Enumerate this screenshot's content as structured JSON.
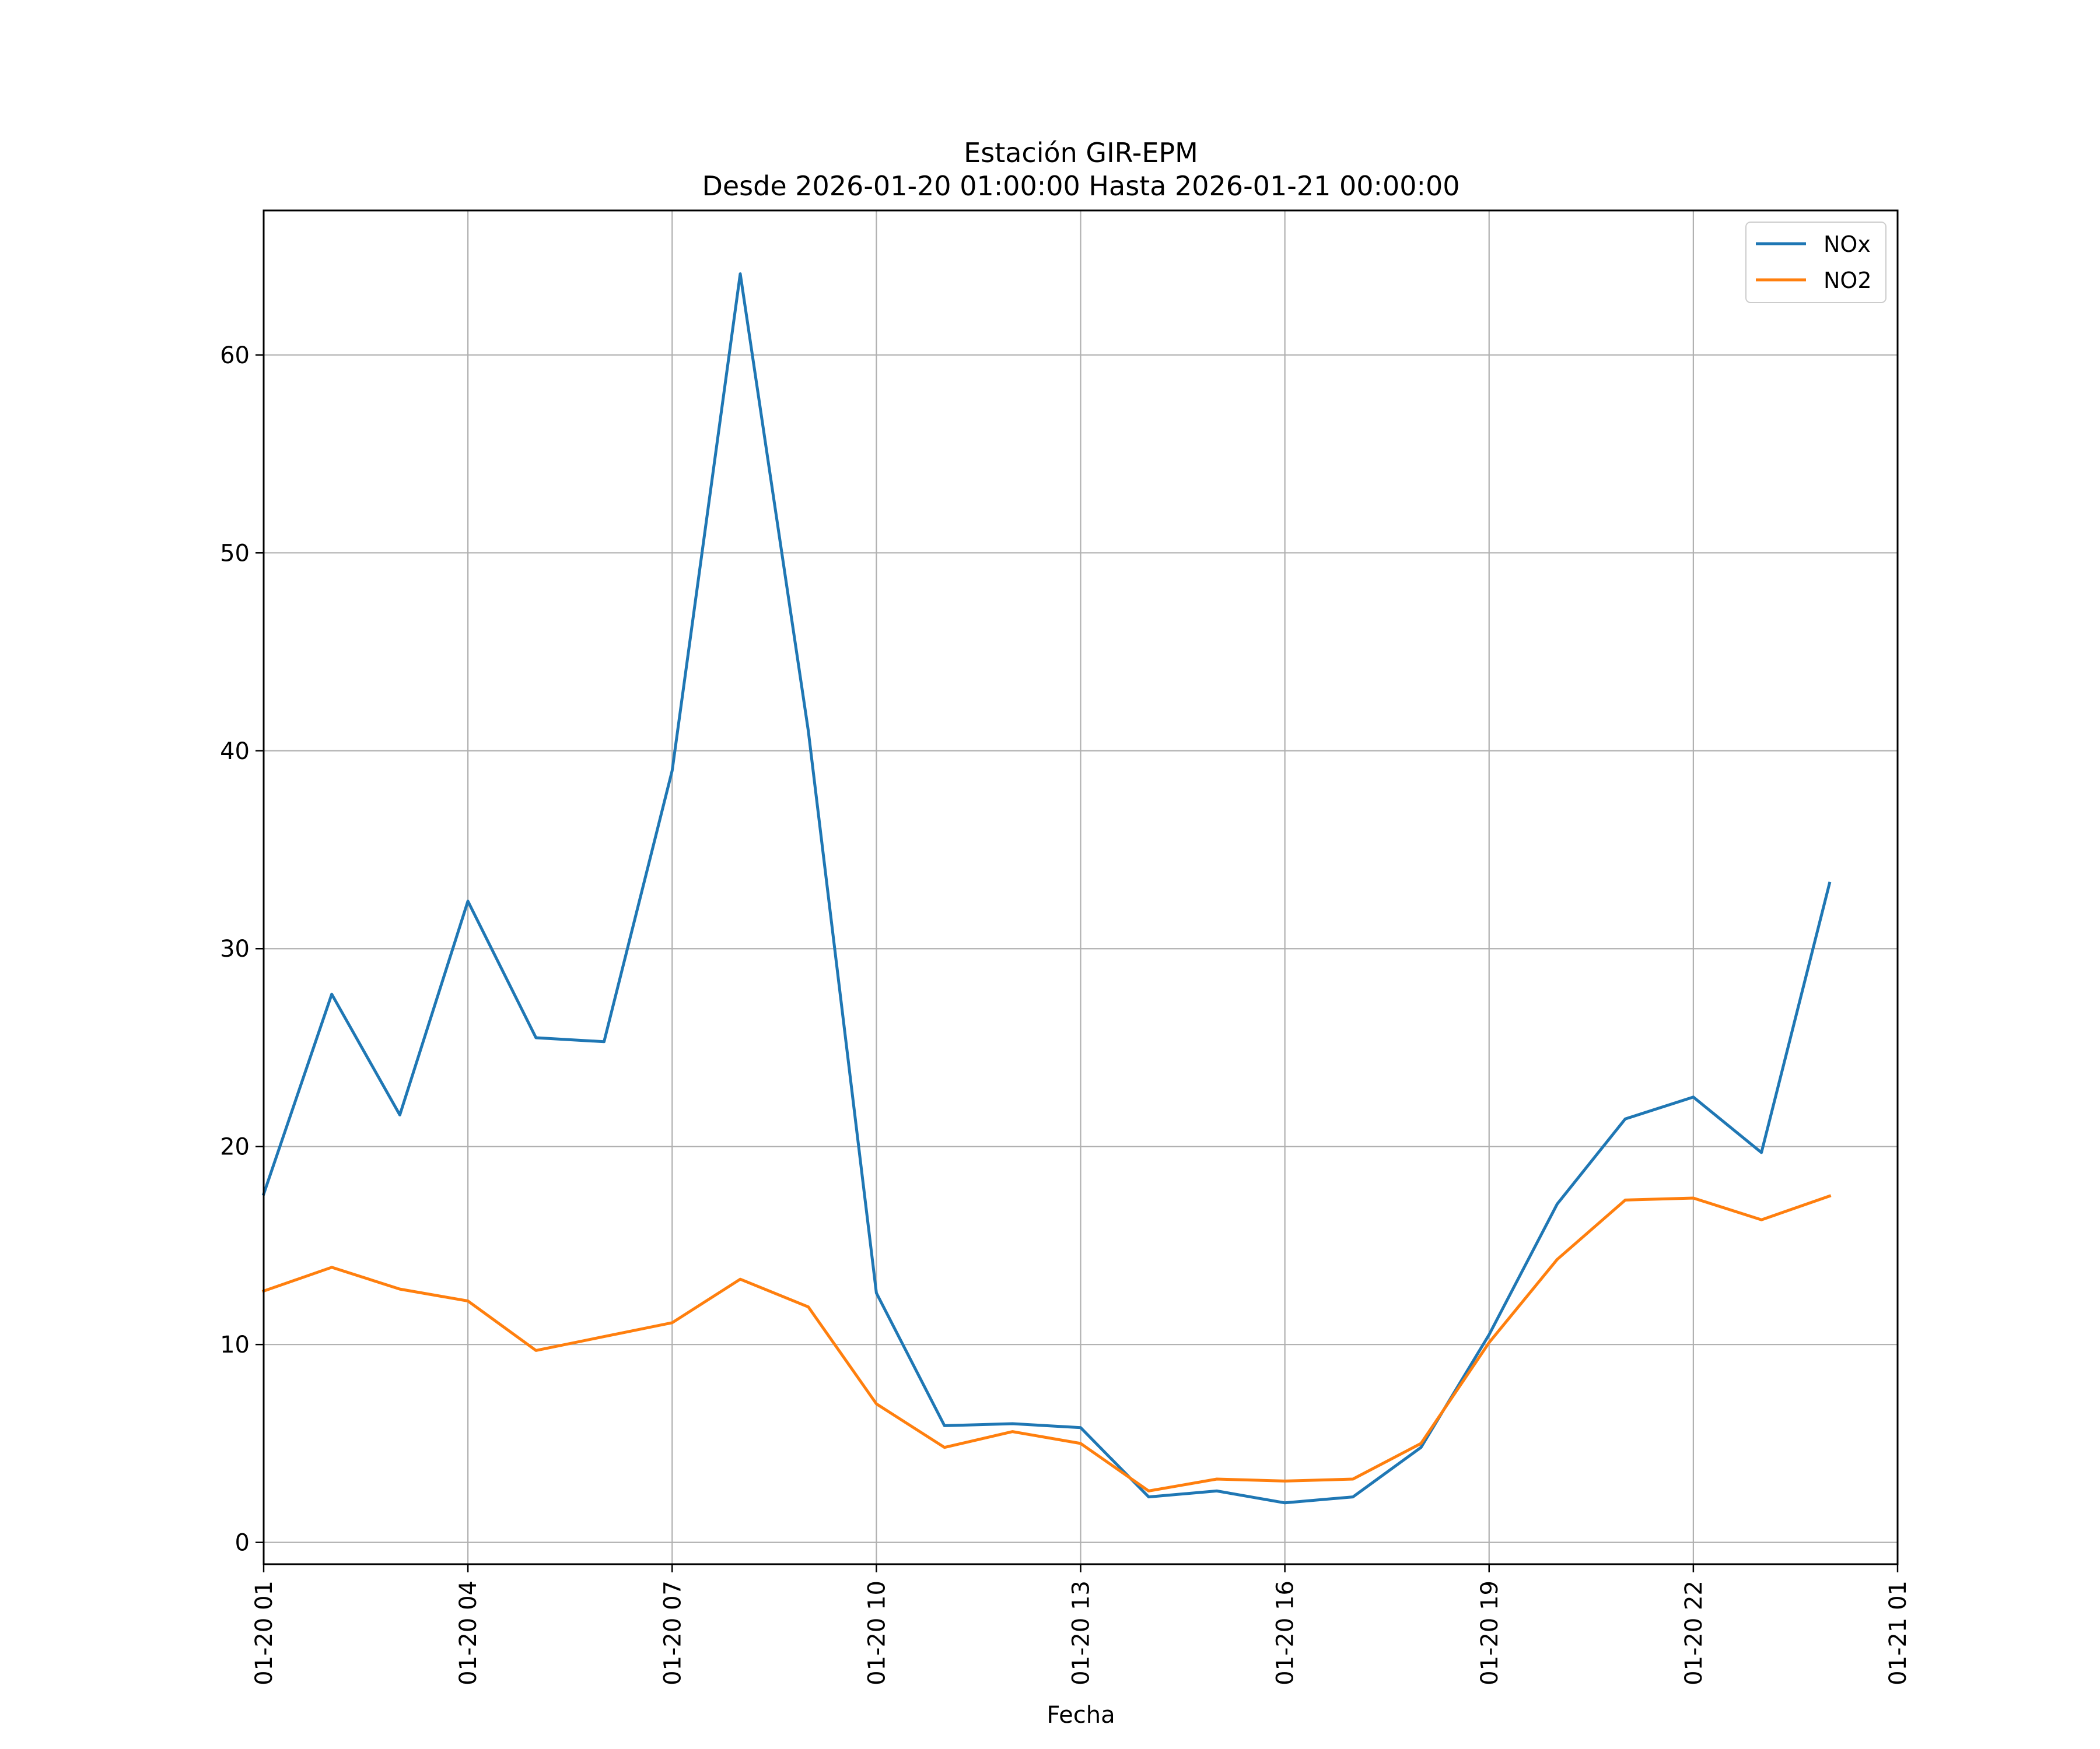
{
  "chart_data": {
    "type": "line",
    "title": "Estación GIR-EPM",
    "subtitle": "Desde 2026-01-20 01:00:00 Hasta 2026-01-21 00:00:00",
    "xlabel": "Fecha",
    "ylabel": "",
    "x": [
      "2026-01-20 01:00",
      "2026-01-20 02:00",
      "2026-01-20 03:00",
      "2026-01-20 04:00",
      "2026-01-20 05:00",
      "2026-01-20 06:00",
      "2026-01-20 07:00",
      "2026-01-20 08:00",
      "2026-01-20 09:00",
      "2026-01-20 10:00",
      "2026-01-20 11:00",
      "2026-01-20 12:00",
      "2026-01-20 13:00",
      "2026-01-20 14:00",
      "2026-01-20 15:00",
      "2026-01-20 16:00",
      "2026-01-20 17:00",
      "2026-01-20 18:00",
      "2026-01-20 19:00",
      "2026-01-20 20:00",
      "2026-01-20 21:00",
      "2026-01-20 22:00",
      "2026-01-20 23:00",
      "2026-01-21 00:00"
    ],
    "xlim": [
      "2026-01-20 01:00",
      "2026-01-21 01:00"
    ],
    "ylim": [
      -1.1,
      67.3
    ],
    "x_ticks": [
      "01-20 01",
      "01-20 04",
      "01-20 07",
      "01-20 10",
      "01-20 13",
      "01-20 16",
      "01-20 19",
      "01-20 22",
      "01-21 01"
    ],
    "y_ticks": [
      "0",
      "10",
      "20",
      "30",
      "40",
      "50",
      "60"
    ],
    "grid": true,
    "legend_position": "top-right",
    "series": [
      {
        "name": "NOx",
        "color": "#1f77b4",
        "values": [
          17.6,
          27.7,
          21.6,
          32.4,
          25.5,
          25.3,
          39.0,
          64.1,
          41.0,
          12.6,
          5.9,
          6.0,
          5.8,
          2.3,
          2.6,
          2.0,
          2.3,
          4.8,
          10.5,
          17.1,
          21.4,
          22.5,
          19.7,
          33.3
        ]
      },
      {
        "name": "NO2",
        "color": "#ff7f0e",
        "values": [
          12.7,
          13.9,
          12.8,
          12.2,
          9.7,
          10.4,
          11.1,
          13.3,
          11.9,
          7.0,
          4.8,
          5.6,
          5.0,
          2.6,
          3.2,
          3.1,
          3.2,
          5.0,
          10.1,
          14.3,
          17.3,
          17.4,
          16.3,
          17.5
        ]
      }
    ]
  }
}
